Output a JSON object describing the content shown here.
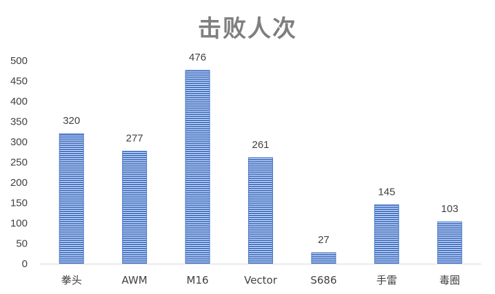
{
  "chart_data": {
    "type": "bar",
    "title": "击败人次",
    "categories": [
      "拳头",
      "AWM",
      "M16",
      "Vector",
      "S686",
      "手雷",
      "毒圈"
    ],
    "values": [
      320,
      277,
      476,
      261,
      27,
      145,
      103
    ],
    "ylim": [
      0,
      500
    ],
    "yticks": [
      0,
      50,
      100,
      150,
      200,
      250,
      300,
      350,
      400,
      450,
      500
    ],
    "grid": false,
    "legend": "none",
    "bar_color": "#4a78c8",
    "bar_pattern": "horizontal-stripes"
  }
}
